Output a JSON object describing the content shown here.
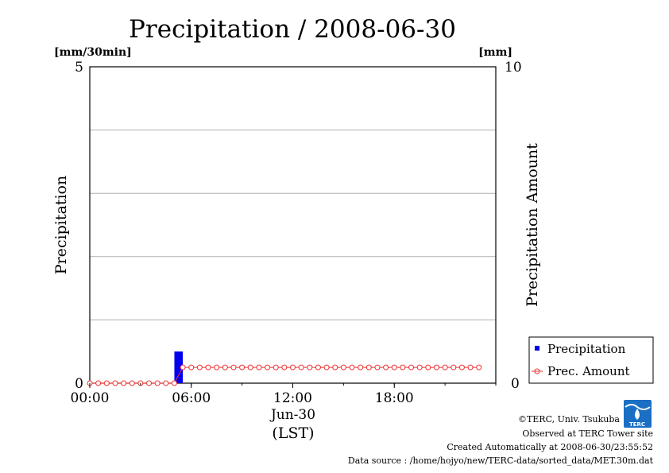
{
  "chart_data": {
    "type": "bar",
    "title": "Precipitation / 2008-06-30",
    "ylabel_left": "Precipitation",
    "ylabel_right": "Precipitation Amount",
    "unit_left": "[mm/30min]",
    "unit_right": "[mm]",
    "ylim_left": [
      0,
      5
    ],
    "ylim_right": [
      0,
      10
    ],
    "xlim_hours": [
      0,
      24
    ],
    "x_ticks": [
      "00:00",
      "06:00",
      "12:00",
      "18:00"
    ],
    "x_date": "Jun-30",
    "x_timezone": "(LST)",
    "y_ticks_left": [
      "0",
      "5"
    ],
    "y_ticks_right": [
      "0",
      "10"
    ],
    "grid": true,
    "legend_position": "bottom-right-outside",
    "series": [
      {
        "name": "Precipitation",
        "kind": "bar",
        "axis": "left",
        "color": "#0000ee",
        "x": [
          "05:00"
        ],
        "values": [
          0.5
        ]
      },
      {
        "name": "Prec. Amount",
        "kind": "line-marker",
        "axis": "right",
        "color": "#ee3333",
        "x_start": "00:00",
        "x_step_min": 30,
        "values": [
          0,
          0,
          0,
          0,
          0,
          0,
          0,
          0,
          0,
          0,
          0,
          0.5,
          0.5,
          0.5,
          0.5,
          0.5,
          0.5,
          0.5,
          0.5,
          0.5,
          0.5,
          0.5,
          0.5,
          0.5,
          0.5,
          0.5,
          0.5,
          0.5,
          0.5,
          0.5,
          0.5,
          0.5,
          0.5,
          0.5,
          0.5,
          0.5,
          0.5,
          0.5,
          0.5,
          0.5,
          0.5,
          0.5,
          0.5,
          0.5,
          0.5,
          0.5,
          0.5
        ]
      }
    ]
  },
  "credits": {
    "copyright": "©TERC, Univ. Tsukuba",
    "observed": "Observed at TERC Tower site",
    "created": "Created Automatically at 2008-06-30/23:55:52",
    "source": "Data source : /home/hojyo/new/TERC-data/sorted_data/MET.30m.dat"
  },
  "logo": {
    "text": "TERC"
  }
}
